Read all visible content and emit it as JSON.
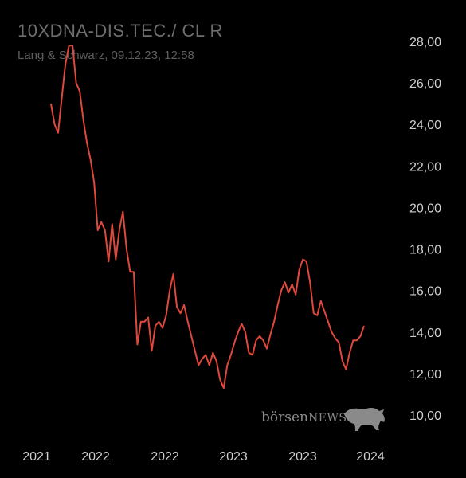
{
  "header": {
    "title": "10XDNA-DIS.TEC./ CL R",
    "subtitle": "Lang & Schwarz, 09.12.23, 12:58"
  },
  "watermark": {
    "brand_part1": "börsen",
    "brand_part2": "NEWS",
    "icon": "bull-icon"
  },
  "colors": {
    "background": "#000000",
    "line": "#e0483c",
    "text": "#cfcfcf",
    "muted": "#6e6e6e"
  },
  "chart_data": {
    "type": "line",
    "title": "10XDNA-DIS.TEC./ CL R",
    "ylim": [
      10,
      28
    ],
    "y_ticks": [
      "28,00",
      "26,00",
      "24,00",
      "22,00",
      "20,00",
      "18,00",
      "16,00",
      "14,00",
      "12,00",
      "10,00"
    ],
    "x_tick_labels": [
      "2021",
      "2022",
      "2022",
      "2023",
      "2023",
      "2024"
    ],
    "grid": false,
    "series": [
      {
        "values": [
          25.0,
          24.0,
          23.6,
          25.3,
          26.9,
          27.8,
          27.8,
          26.0,
          25.6,
          24.2,
          23.1,
          22.3,
          21.2,
          18.9,
          19.3,
          18.9,
          17.4,
          19.2,
          17.5,
          18.9,
          19.8,
          18.0,
          16.9,
          16.9,
          13.4,
          14.5,
          14.5,
          14.7,
          13.1,
          14.3,
          14.5,
          14.2,
          14.8,
          16.0,
          16.8,
          15.2,
          14.9,
          15.3,
          14.5,
          13.8,
          13.1,
          12.4,
          12.7,
          12.9,
          12.4,
          13.0,
          12.6,
          11.7,
          11.3,
          12.4,
          12.9,
          13.5,
          14.0,
          14.4,
          14.0,
          13.0,
          12.9,
          13.6,
          13.8,
          13.6,
          13.2,
          13.9,
          14.5,
          15.3,
          16.0,
          16.4,
          15.9,
          16.3,
          15.8,
          17.0,
          17.5,
          17.4,
          16.4,
          14.9,
          14.8,
          15.5,
          15.0,
          14.5,
          14.0,
          13.7,
          13.5,
          12.6,
          12.2,
          13.0,
          13.6,
          13.6,
          13.8,
          14.3
        ]
      }
    ]
  }
}
